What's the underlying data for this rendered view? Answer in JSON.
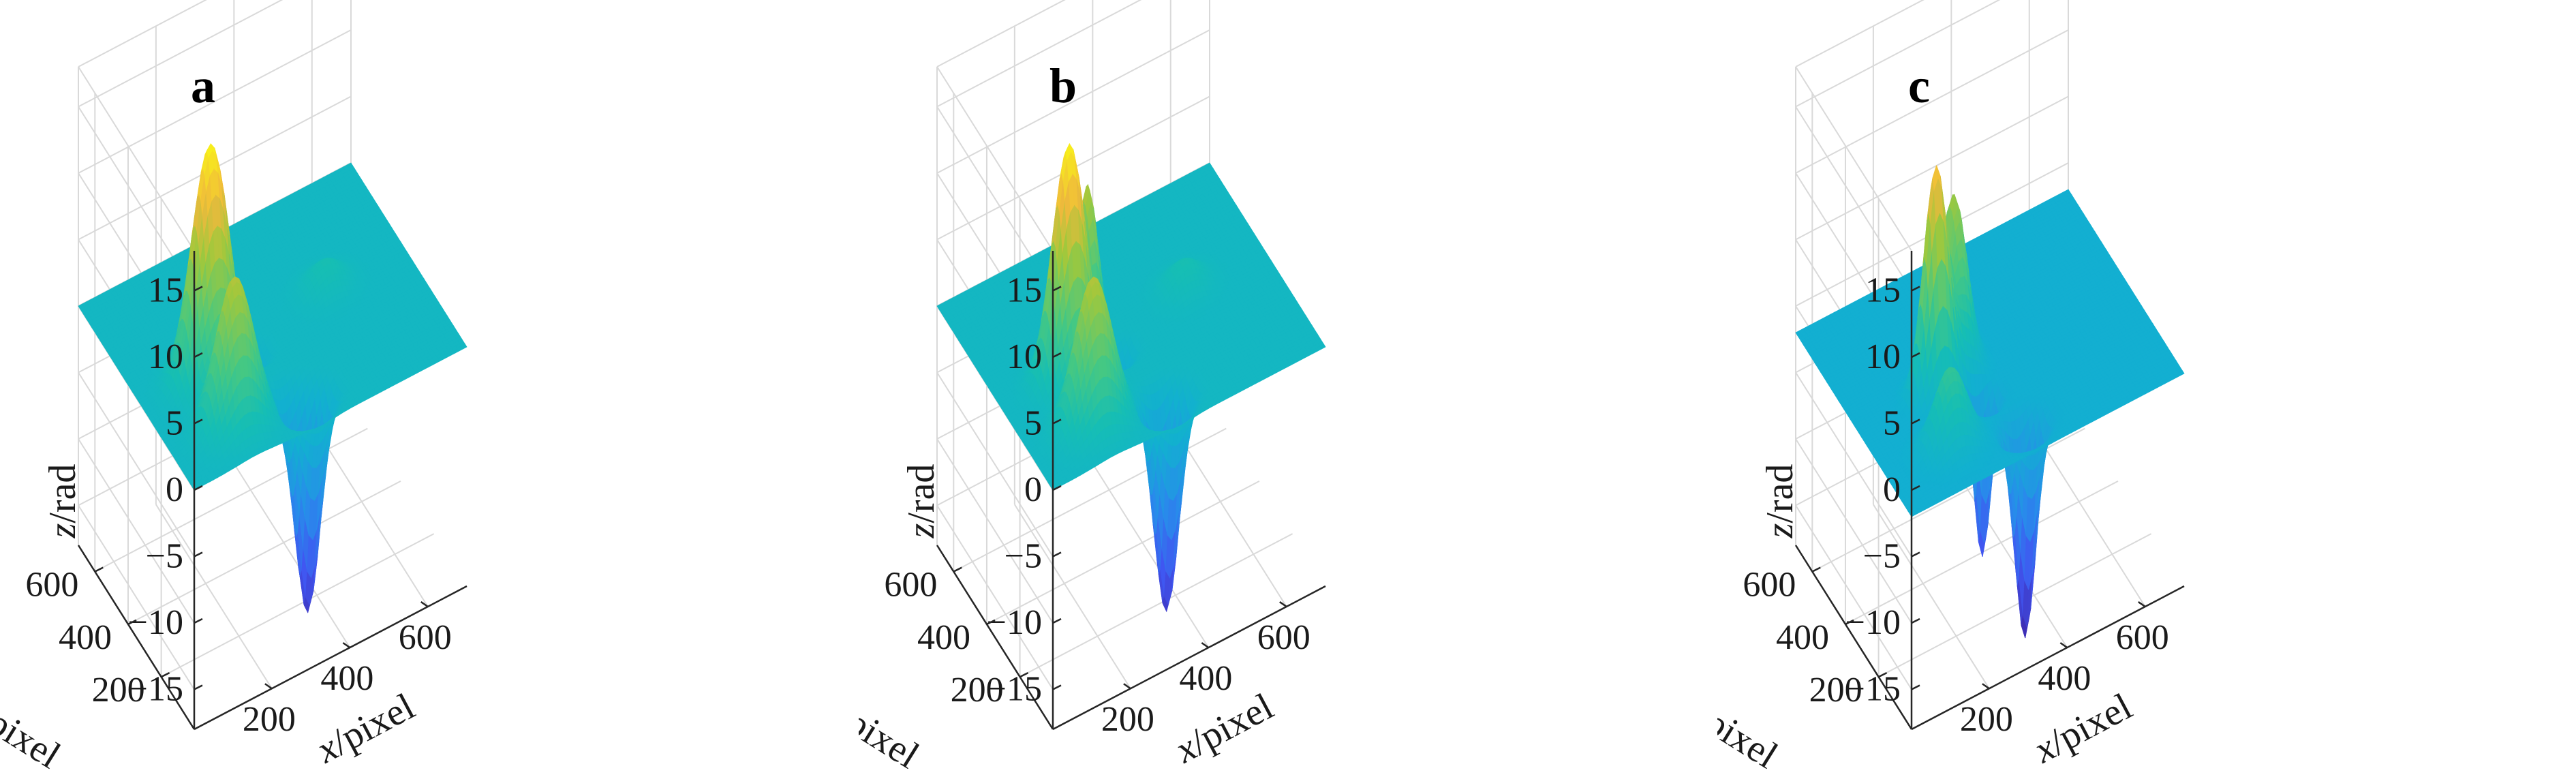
{
  "chart_data": [
    {
      "type": "surface",
      "panel_label": "a",
      "xlabel": "x/pixel",
      "ylabel": "y/pixel",
      "zlabel": "z/rad",
      "x_ticks": [
        "200",
        "400",
        "600"
      ],
      "y_ticks": [
        "200",
        "400",
        "600"
      ],
      "z_ticks": [
        "15",
        "10",
        "5",
        "0",
        "−5",
        "−10",
        "−15"
      ],
      "x_tick_values": [
        200,
        400,
        600
      ],
      "y_tick_values": [
        200,
        400,
        600
      ],
      "z_tick_values": [
        15,
        10,
        5,
        0,
        -5,
        -10,
        -15
      ],
      "xlim": [
        1,
        700
      ],
      "ylim": [
        1,
        700
      ],
      "zlim": [
        -18,
        18
      ],
      "grid": true,
      "colormap": "parula",
      "features": [
        {
          "kind": "peak",
          "x": 170,
          "y": 300,
          "z": 17.5,
          "width": 45
        },
        {
          "kind": "peak",
          "x": 160,
          "y": 130,
          "z": 11,
          "width": 45
        },
        {
          "kind": "bump",
          "x": 500,
          "y": 380,
          "z": 2,
          "width": 40
        },
        {
          "kind": "trough",
          "x": 330,
          "y": 90,
          "z": -16,
          "width": 30
        },
        {
          "kind": "trough",
          "x": 270,
          "y": 300,
          "z": -4,
          "width": 25
        },
        {
          "kind": "trough",
          "x": 300,
          "y": 150,
          "z": -3,
          "width": 25
        }
      ]
    },
    {
      "type": "surface",
      "panel_label": "b",
      "xlabel": "x/pixel",
      "ylabel": "y/pixel",
      "zlabel": "z/rad",
      "x_ticks": [
        "200",
        "400",
        "600"
      ],
      "y_ticks": [
        "200",
        "400",
        "600"
      ],
      "z_ticks": [
        "15",
        "10",
        "5",
        "0",
        "−5",
        "−10",
        "−15"
      ],
      "x_tick_values": [
        200,
        400,
        600
      ],
      "y_tick_values": [
        200,
        400,
        600
      ],
      "z_tick_values": [
        15,
        10,
        5,
        0,
        -5,
        -10,
        -15
      ],
      "xlim": [
        1,
        700
      ],
      "ylim": [
        1,
        700
      ],
      "zlim": [
        -18,
        18
      ],
      "grid": true,
      "colormap": "parula",
      "features": [
        {
          "kind": "peak",
          "x": 170,
          "y": 300,
          "z": 17.5,
          "width": 40
        },
        {
          "kind": "peak",
          "x": 160,
          "y": 130,
          "z": 11,
          "width": 45
        },
        {
          "kind": "wall",
          "x": 260,
          "y": 400,
          "z": 11,
          "width": 20
        },
        {
          "kind": "bump",
          "x": 500,
          "y": 380,
          "z": 2,
          "width": 40
        },
        {
          "kind": "trough",
          "x": 330,
          "y": 90,
          "z": -16,
          "width": 30
        },
        {
          "kind": "trough",
          "x": 290,
          "y": 300,
          "z": -4,
          "width": 25
        }
      ]
    },
    {
      "type": "surface",
      "panel_label": "c",
      "xlabel": "x/pixel",
      "ylabel": "y/pixel",
      "zlabel": "z/rad",
      "x_ticks": [
        "200",
        "400",
        "600"
      ],
      "y_ticks": [
        "200",
        "400",
        "600"
      ],
      "z_ticks": [
        "15",
        "10",
        "5",
        "0",
        "−5",
        "−10",
        "−15"
      ],
      "x_tick_values": [
        200,
        400,
        600
      ],
      "y_tick_values": [
        200,
        400,
        600
      ],
      "z_tick_values": [
        15,
        10,
        5,
        0,
        -5,
        -10,
        -15
      ],
      "xlim": [
        1,
        700
      ],
      "ylim": [
        1,
        700
      ],
      "zlim": [
        -18,
        18
      ],
      "grid": true,
      "colormap": "parula",
      "baseline": -2,
      "features": [
        {
          "kind": "peak",
          "x": 200,
          "y": 320,
          "z": 17,
          "width": 30
        },
        {
          "kind": "peak",
          "x": 160,
          "y": 140,
          "z": 6,
          "width": 40
        },
        {
          "kind": "wall",
          "x": 280,
          "y": 400,
          "z": 12,
          "width": 25
        },
        {
          "kind": "trough",
          "x": 330,
          "y": 90,
          "z": -16,
          "width": 25
        },
        {
          "kind": "trough",
          "x": 280,
          "y": 230,
          "z": -12,
          "width": 20
        }
      ]
    }
  ]
}
